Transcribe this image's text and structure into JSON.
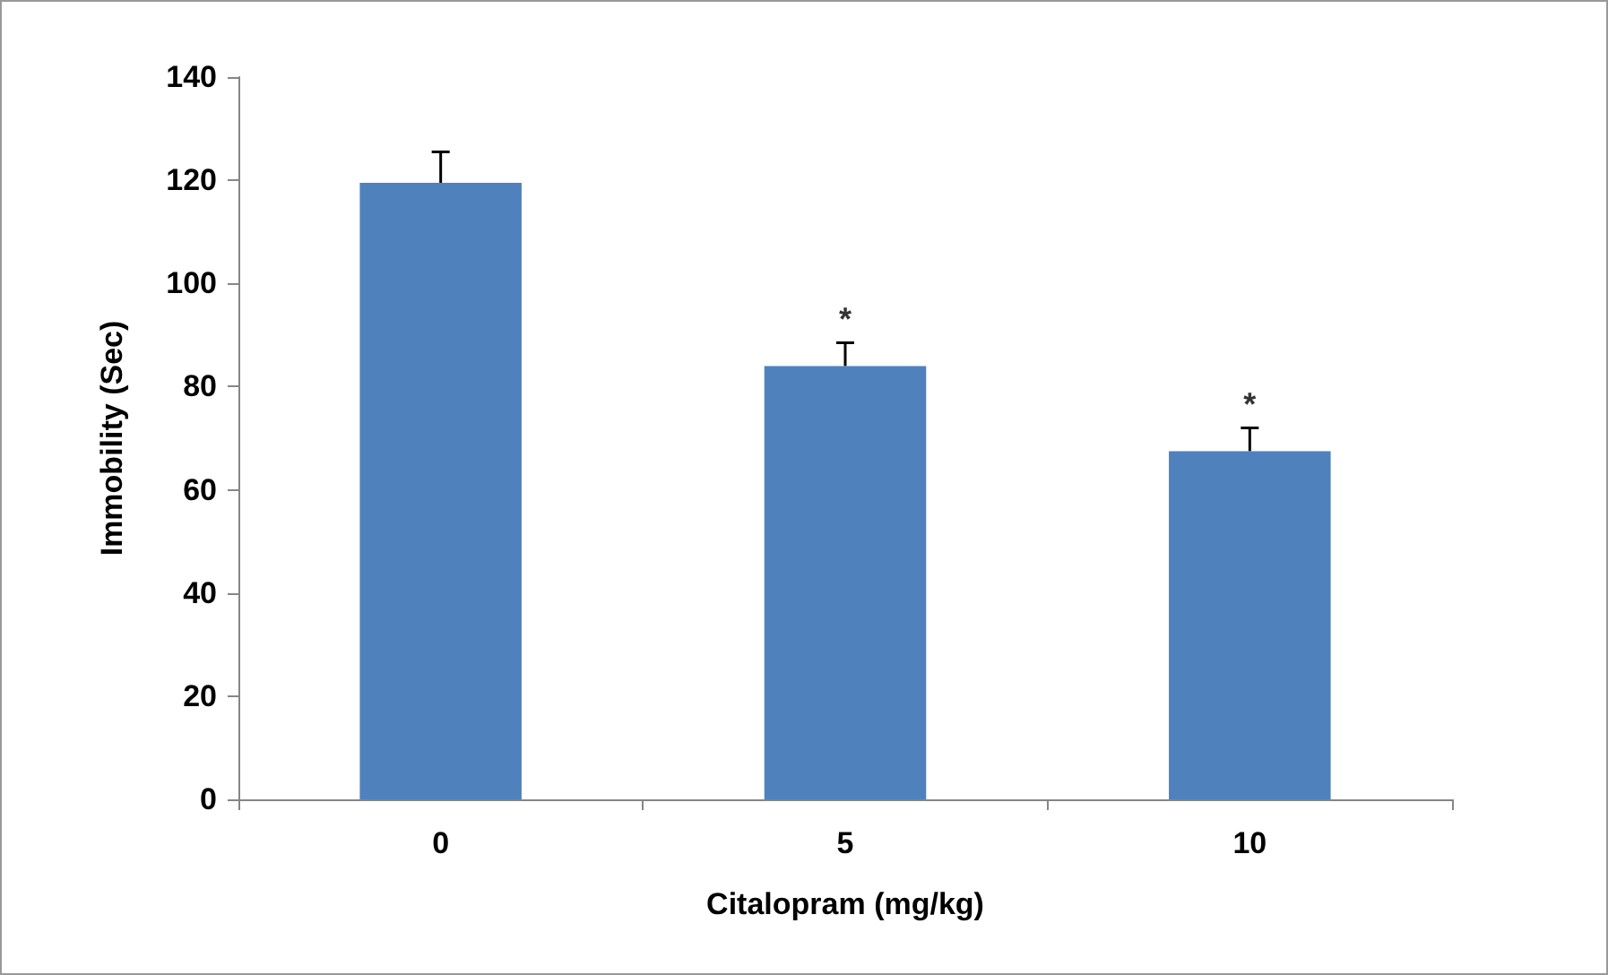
{
  "chart_data": {
    "type": "bar",
    "xlabel": "Citalopram (mg/kg)",
    "ylabel": "Immobility (Sec)",
    "categories": [
      "0",
      "5",
      "10"
    ],
    "values": [
      119.5,
      84,
      67.5
    ],
    "errors": [
      [
        119.5,
        125.5
      ],
      [
        84,
        88.5
      ],
      [
        67.5,
        72
      ]
    ],
    "color": "#4f81bd",
    "ylim": [
      0,
      140
    ],
    "yticks": [
      0,
      20,
      40,
      60,
      80,
      100,
      120,
      140
    ],
    "grid": false,
    "annotations": [
      {
        "text": "*",
        "x": "5",
        "y": 88.5
      },
      {
        "text": "*",
        "x": "10",
        "y": 72
      }
    ]
  }
}
